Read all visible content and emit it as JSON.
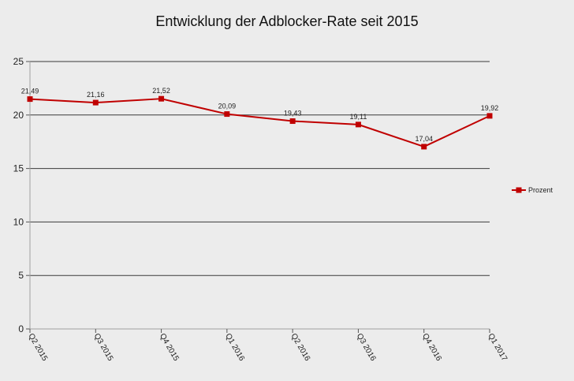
{
  "chart_data": {
    "type": "line",
    "title": "Entwicklung der Adblocker-Rate seit 2015",
    "categories": [
      "Q2 2015",
      "Q3 2015",
      "Q4 2015",
      "Q1 2016",
      "Q2 2016",
      "Q3 2016",
      "Q4 2016",
      "Q1 2017"
    ],
    "series": [
      {
        "name": "Prozent",
        "values": [
          21.49,
          21.16,
          21.52,
          20.09,
          19.43,
          19.11,
          17.04,
          19.92
        ],
        "data_labels": [
          "21,49",
          "21,16",
          "21,52",
          "20,09",
          "19,43",
          "19,11",
          "17,04",
          "19,92"
        ],
        "color": "#c00000"
      }
    ],
    "ylim": [
      0,
      25
    ],
    "yticks": [
      0,
      5,
      10,
      15,
      20,
      25
    ],
    "ytick_labels": [
      "0",
      "5",
      "10",
      "15",
      "20",
      "25"
    ],
    "grid": true,
    "legend": "right",
    "background": "#ececec"
  }
}
